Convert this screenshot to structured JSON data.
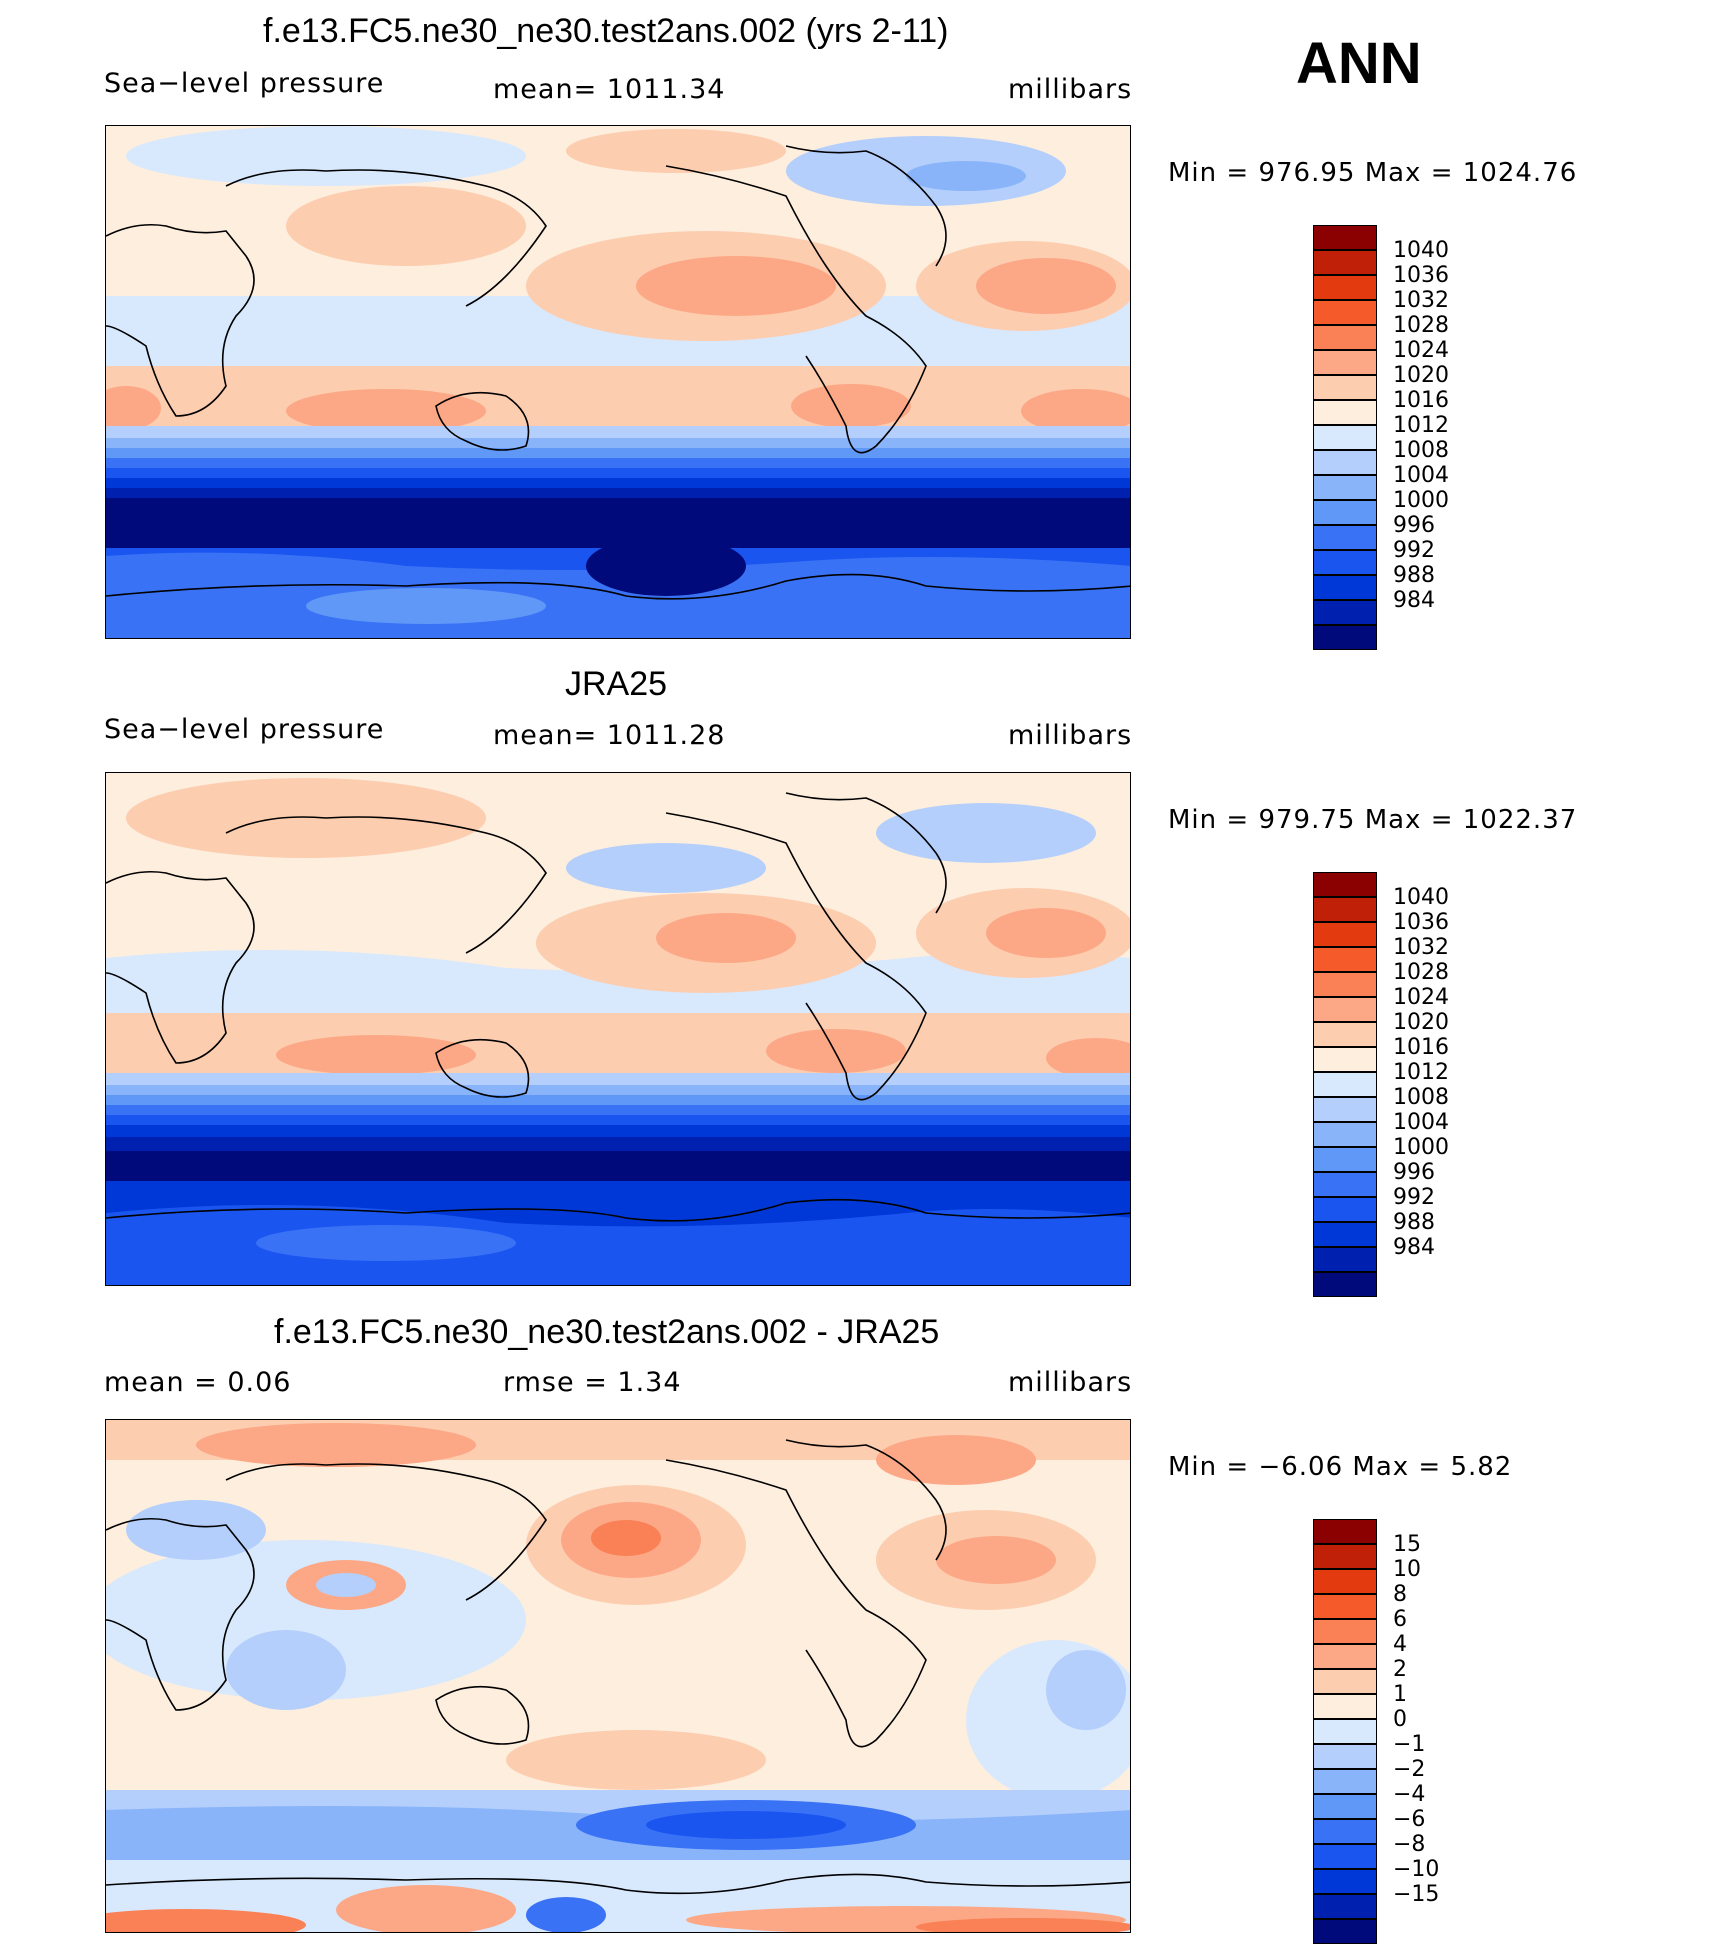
{
  "season": "ANN",
  "colors": {
    "abs_scale": [
      "#000a7a",
      "#0020b0",
      "#0038d8",
      "#1a55f0",
      "#3a72f5",
      "#6098f8",
      "#8ab4fa",
      "#b4cffc",
      "#d8e8fd",
      "#fdeede",
      "#fdcdb0",
      "#fca886",
      "#fa8055",
      "#f55a2a",
      "#e33a10",
      "#c02008",
      "#8b0000"
    ],
    "diff_scale": [
      "#000a7a",
      "#0020b0",
      "#0038d8",
      "#1a55f0",
      "#3a72f5",
      "#6098f8",
      "#8ab4fa",
      "#b4cffc",
      "#d8e8fd",
      "#fdeede",
      "#fdcdb0",
      "#fca886",
      "#fa8055",
      "#f55a2a",
      "#e33a10",
      "#c02008",
      "#8b0000"
    ]
  },
  "panels": [
    {
      "title": "f.e13.FC5.ne30_ne30.test2ans.002 (yrs 2-11)",
      "left_label": "Sea−level pressure",
      "center_label": "mean=  1011.34",
      "units": "millibars",
      "minmax": "Min  =  976.95  Max  =  1024.76",
      "colorbar_labels": [
        "1040",
        "1036",
        "1032",
        "1028",
        "1024",
        "1020",
        "1016",
        "1012",
        "1008",
        "1004",
        "1000",
        "996",
        "992",
        "988",
        "984"
      ]
    },
    {
      "title": "JRA25",
      "left_label": "Sea−level pressure",
      "center_label": "mean=  1011.28",
      "units": "millibars",
      "minmax": "Min  =  979.75  Max  =  1022.37",
      "colorbar_labels": [
        "1040",
        "1036",
        "1032",
        "1028",
        "1024",
        "1020",
        "1016",
        "1012",
        "1008",
        "1004",
        "1000",
        "996",
        "992",
        "988",
        "984"
      ]
    },
    {
      "title": "f.e13.FC5.ne30_ne30.test2ans.002 - JRA25",
      "left_label": "mean  =      0.06",
      "center_label": "rmse  =     1.34",
      "units": "millibars",
      "minmax": "Min  =    −6.06  Max  =      5.82",
      "colorbar_labels": [
        "15",
        "10",
        "8",
        "6",
        "4",
        "2",
        "1",
        "0",
        "−1",
        "−2",
        "−4",
        "−6",
        "−8",
        "−10",
        "−15"
      ]
    }
  ]
}
